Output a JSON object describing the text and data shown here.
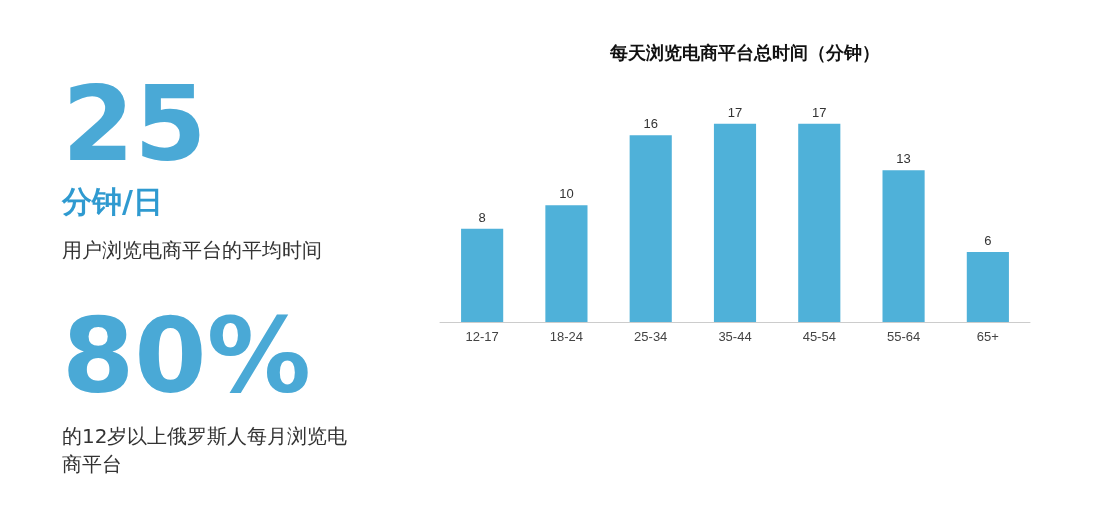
{
  "chart_data": [
    {
      "type": "other",
      "annotations": [
        "25",
        "分钟/日",
        "用户浏览电商平台的平均时间",
        "80%",
        "的12岁以上俄罗斯人每月浏览电商平台"
      ]
    },
    {
      "type": "bar",
      "title": "每天浏览电商平台总时间（分钟）",
      "categories": [
        "12-17",
        "18-24",
        "25-34",
        "35-44",
        "45-54",
        "55-64",
        "65+"
      ],
      "values": [
        8,
        10,
        16,
        17,
        17,
        13,
        6
      ],
      "color": "#4fb1d9",
      "data_labels": true
    }
  ]
}
